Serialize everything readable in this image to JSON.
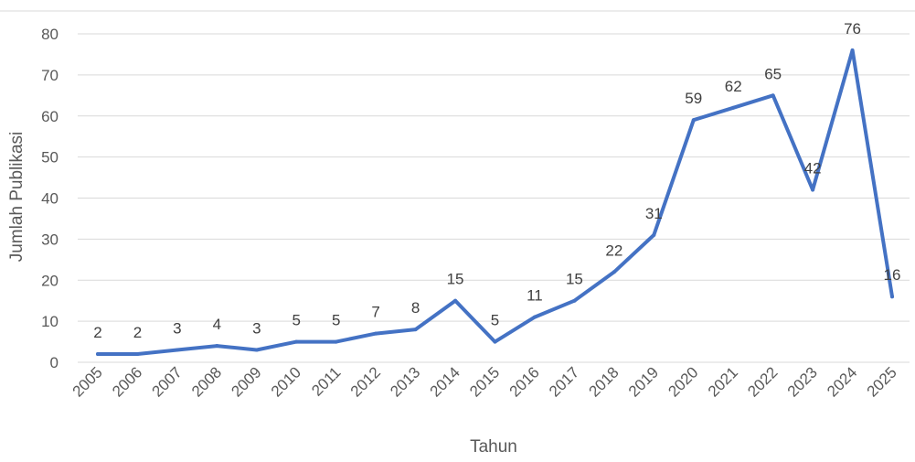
{
  "chart_data": {
    "type": "line",
    "title": "",
    "xlabel": "Tahun",
    "ylabel": "Jumlah Publikasi",
    "ylim": [
      0,
      80
    ],
    "yticks": [
      0,
      10,
      20,
      30,
      40,
      50,
      60,
      70,
      80
    ],
    "grid": "horizontal",
    "legend": "none",
    "categories": [
      "2005",
      "2006",
      "2007",
      "2008",
      "2009",
      "2010",
      "2011",
      "2012",
      "2013",
      "2014",
      "2015",
      "2016",
      "2017",
      "2018",
      "2019",
      "2020",
      "2021",
      "2022",
      "2023",
      "2024",
      "2025"
    ],
    "series": [
      {
        "values": [
          2,
          2,
          3,
          4,
          3,
          5,
          5,
          7,
          8,
          15,
          5,
          11,
          15,
          22,
          31,
          59,
          62,
          65,
          42,
          76,
          16
        ],
        "color": "#4472C4"
      }
    ],
    "data_labels": [
      "2",
      "2",
      "3",
      "4",
      "3",
      "5",
      "5",
      "7",
      "8",
      "15",
      "5",
      "11",
      "15",
      "22",
      "31",
      "59",
      "62",
      "65",
      "42",
      "76",
      "16"
    ]
  }
}
